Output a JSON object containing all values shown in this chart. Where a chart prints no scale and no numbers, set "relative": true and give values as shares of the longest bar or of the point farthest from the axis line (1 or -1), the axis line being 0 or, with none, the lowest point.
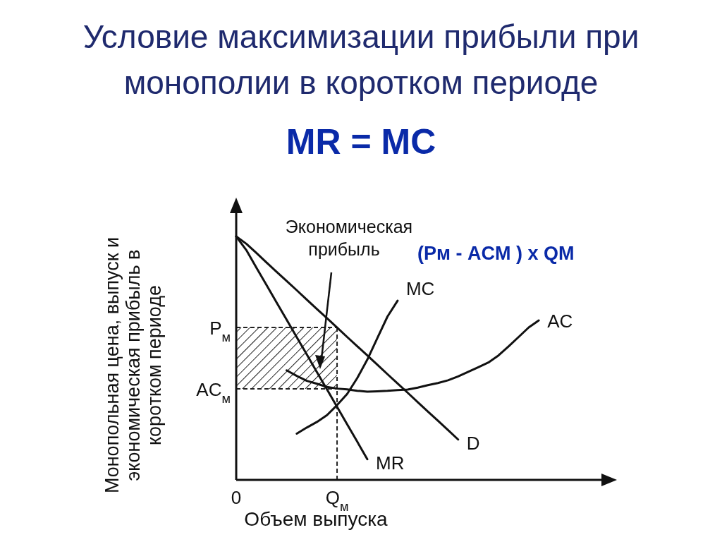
{
  "chart_data": {
    "type": "line",
    "title": "Условие максимизации прибыли при монополии в коротком периоде",
    "subtitle": "MR = MC",
    "xlabel": "Объем выпуска",
    "ylabel": "Монопольная цена, выпуск и экономическая прибыль в коротком периоде",
    "relative": true,
    "legend": false,
    "marker": "none",
    "line_style": "solid",
    "categories": [
      "0",
      null,
      null,
      null,
      null,
      null,
      null,
      null,
      null,
      null,
      "Q$_{м}$",
      null,
      null,
      null,
      null,
      null,
      null,
      null,
      null,
      null,
      null,
      null,
      null,
      null,
      null,
      null,
      null,
      null,
      null,
      null,
      null,
      null,
      null,
      null,
      null,
      null,
      null
    ],
    "series": [
      {
        "name": "MC",
        "color": "#111111",
        "values": [
          null,
          null,
          null,
          null,
          null,
          null,
          0.19,
          0.215,
          0.238,
          0.266,
          0.307,
          0.353,
          0.418,
          0.494,
          0.583,
          0.671,
          0.736,
          null,
          null,
          null,
          null,
          null,
          null,
          null,
          null,
          null,
          null,
          null,
          null,
          null,
          null,
          null,
          null,
          null,
          null,
          null,
          null
        ]
      },
      {
        "name": "AC",
        "color": "#111111",
        "values": [
          null,
          null,
          null,
          null,
          null,
          0.45,
          0.427,
          0.407,
          0.395,
          0.382,
          0.375,
          0.372,
          0.366,
          0.362,
          0.364,
          0.366,
          0.369,
          0.371,
          0.379,
          0.389,
          0.398,
          0.409,
          0.425,
          0.444,
          0.463,
          0.482,
          0.511,
          0.548,
          0.587,
          0.626,
          0.655,
          null,
          null,
          null,
          null,
          null,
          null
        ]
      },
      {
        "name": "MR",
        "color": "#111111",
        "values": [
          1,
          0.944,
          0.872,
          0.801,
          0.729,
          0.658,
          0.586,
          0.515,
          0.443,
          0.372,
          0.3,
          0.228,
          0.157,
          0.085,
          null,
          null,
          null,
          null,
          null,
          null,
          null,
          null,
          null,
          null,
          null,
          null,
          null,
          null,
          null,
          null,
          null,
          null,
          null,
          null,
          null,
          null,
          null
        ]
      },
      {
        "name": "D",
        "color": "#111111",
        "values": [
          1,
          0.97,
          0.932,
          0.893,
          0.855,
          0.817,
          0.779,
          0.74,
          0.702,
          0.664,
          0.626,
          0.587,
          0.549,
          0.511,
          0.473,
          0.434,
          0.396,
          0.358,
          0.319,
          0.281,
          0.243,
          0.205,
          0.166,
          null,
          null,
          null,
          null,
          null,
          null,
          null,
          null,
          null,
          null,
          null,
          null,
          null,
          null
        ]
      }
    ],
    "ref_lines": [
      {
        "axis": "y",
        "value": 0.626,
        "label": "P$_{м}$",
        "line_style": "dashed"
      },
      {
        "axis": "y",
        "value": 0.374,
        "label": "AC$_{м}$",
        "line_style": "dashed"
      },
      {
        "axis": "x",
        "value": "Q$_{м}$",
        "label": null,
        "line_style": "dashed"
      }
    ],
    "annotations": [
      "Экономическая прибыль",
      "(Pм - ACM ) x QM"
    ]
  }
}
